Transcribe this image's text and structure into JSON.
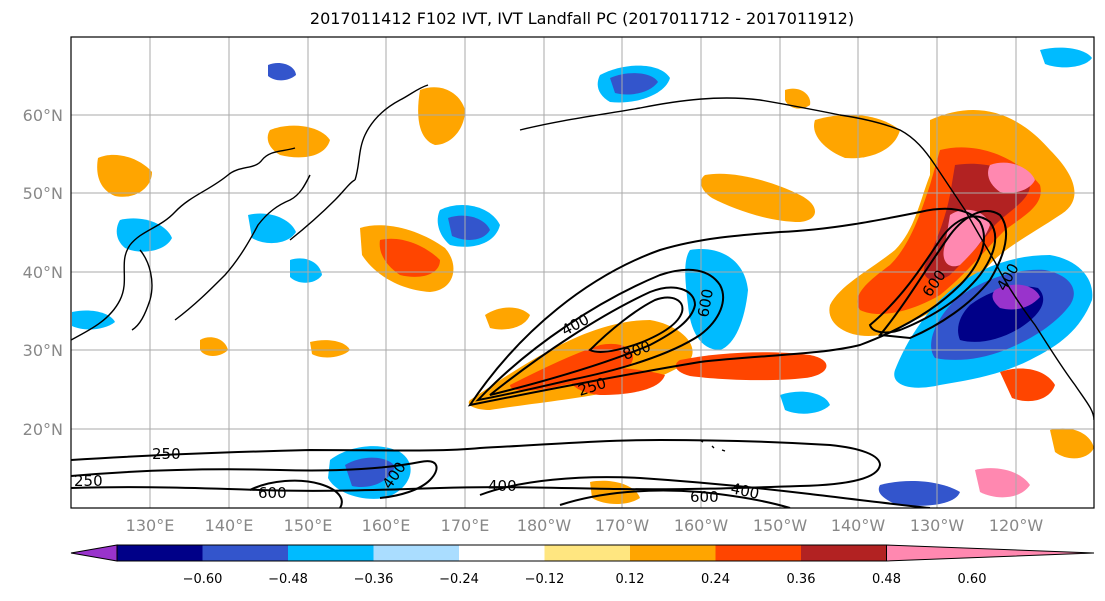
{
  "title": "2017011412 F102 IVT, IVT Landfall PC (2017011712 - 2017011912)",
  "lat_labels": [
    "20°N",
    "30°N",
    "40°N",
    "50°N",
    "60°N"
  ],
  "lon_labels": [
    "130°E",
    "140°E",
    "150°E",
    "160°E",
    "170°E",
    "180°W",
    "170°W",
    "160°W",
    "150°W",
    "140°W",
    "130°W",
    "120°W"
  ],
  "colorbar": {
    "labels": [
      "−0.60",
      "−0.48",
      "−0.36",
      "−0.24",
      "−0.12",
      "0.12",
      "0.24",
      "0.36",
      "0.48",
      "0.60"
    ],
    "colors": [
      "#9933cc",
      "#000088",
      "#3355cc",
      "#00bbff",
      "#aaddff",
      "#ffffff",
      "#ffe680",
      "#ffa500",
      "#ff4500",
      "#b22222",
      "#ff88b0"
    ]
  },
  "contour_labels": [
    "250",
    "400",
    "600",
    "800",
    "250",
    "400",
    "600",
    "400",
    "600",
    "400",
    "600",
    "400",
    "250"
  ],
  "colors": {
    "contour": "#000000",
    "grid": "#aaaaaa",
    "coast": "#000000"
  }
}
